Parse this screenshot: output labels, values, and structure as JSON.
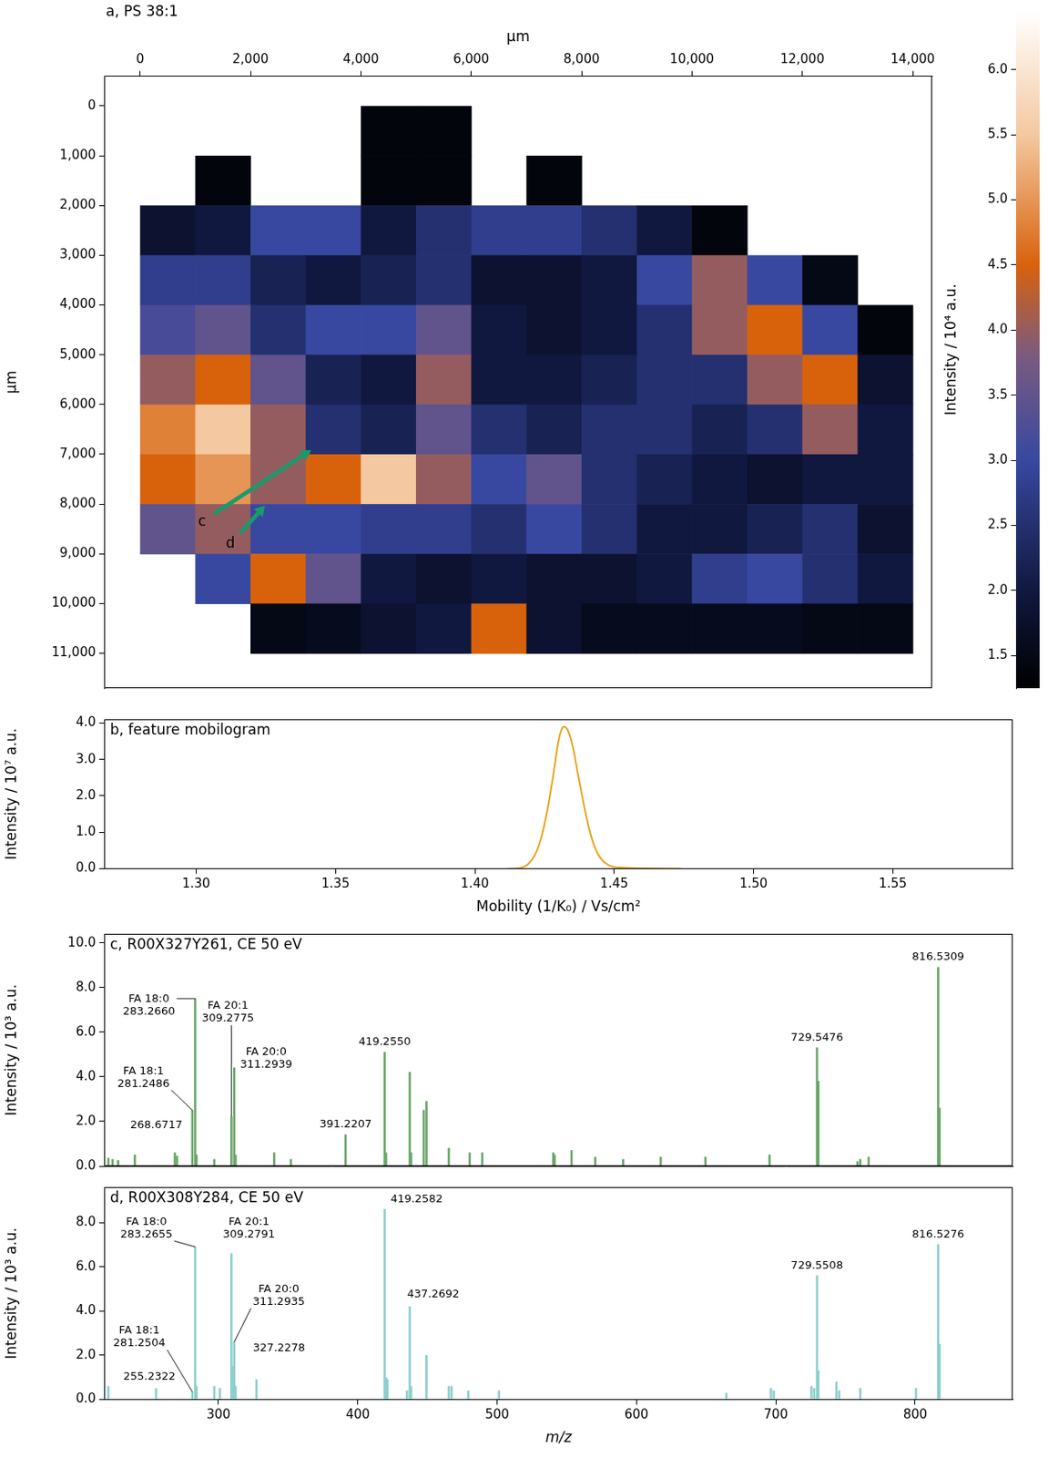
{
  "chart_data": [
    {
      "type": "heatmap",
      "title": "a, PS 38:1",
      "x_label": "µm",
      "y_label": "µm",
      "xlim": [
        -650,
        14350
      ],
      "ylim": [
        -600,
        11700
      ],
      "xticks": [
        0,
        {
          "value": 2000,
          "label": "2,000"
        },
        {
          "value": 4000,
          "label": "4,000"
        },
        {
          "value": 6000,
          "label": "6,000"
        },
        {
          "value": 8000,
          "label": "8,000"
        },
        {
          "value": 10000,
          "label": "10,000"
        },
        {
          "value": 12000,
          "label": "12,000"
        },
        {
          "value": 14000,
          "label": "14,000"
        }
      ],
      "yticks": [
        0,
        {
          "value": 1000,
          "label": "1,000"
        },
        {
          "value": 2000,
          "label": "2,000"
        },
        {
          "value": 3000,
          "label": "3,000"
        },
        {
          "value": 4000,
          "label": "4,000"
        },
        {
          "value": 5000,
          "label": "5,000"
        },
        {
          "value": 6000,
          "label": "6,000"
        },
        {
          "value": 7000,
          "label": "7,000"
        },
        {
          "value": 8000,
          "label": "8,000"
        },
        {
          "value": 9000,
          "label": "9,000"
        },
        {
          "value": 10000,
          "label": "10,000"
        },
        {
          "value": 11000,
          "label": "11,000"
        }
      ],
      "x": [
        500,
        1500,
        2500,
        3500,
        4500,
        5500,
        6500,
        7500,
        8500,
        9500,
        10500,
        11500,
        12500,
        13500
      ],
      "y": [
        500,
        1500,
        2500,
        3500,
        4500,
        5500,
        6500,
        7500,
        8500,
        9500,
        10500
      ],
      "cells": [
        [
          null,
          null,
          null,
          null,
          1.4,
          1.4,
          null,
          null,
          null,
          null,
          null,
          null,
          null,
          null
        ],
        [
          null,
          1.4,
          null,
          null,
          1.4,
          1.4,
          null,
          1.4,
          null,
          null,
          null,
          null,
          null,
          null
        ],
        [
          1.8,
          2.0,
          3.0,
          3.0,
          2.0,
          2.5,
          2.8,
          2.8,
          2.5,
          2.0,
          1.4,
          null,
          null,
          null
        ],
        [
          2.8,
          2.8,
          2.2,
          2.0,
          2.2,
          2.5,
          1.8,
          1.8,
          2.0,
          3.0,
          4.0,
          3.0,
          1.5,
          null
        ],
        [
          3.2,
          3.5,
          2.5,
          3.0,
          3.0,
          3.5,
          2.0,
          1.8,
          2.0,
          2.5,
          4.0,
          4.5,
          3.0,
          1.4
        ],
        [
          4.0,
          4.5,
          3.5,
          2.2,
          2.0,
          4.0,
          2.0,
          2.0,
          2.2,
          2.5,
          2.5,
          4.0,
          4.5,
          1.8
        ],
        [
          4.8,
          5.5,
          4.0,
          2.5,
          2.2,
          3.5,
          2.5,
          2.2,
          2.5,
          2.5,
          2.2,
          2.5,
          4.0,
          2.0
        ],
        [
          4.5,
          5.0,
          4.0,
          4.5,
          5.5,
          4.0,
          3.0,
          3.5,
          2.5,
          2.2,
          2.0,
          1.8,
          2.0,
          2.0
        ],
        [
          3.5,
          4.0,
          3.0,
          3.0,
          2.8,
          2.8,
          2.5,
          3.0,
          2.5,
          2.0,
          2.0,
          2.2,
          2.5,
          1.8
        ],
        [
          null,
          3.0,
          4.5,
          3.5,
          2.0,
          1.8,
          2.0,
          1.8,
          1.8,
          2.0,
          2.8,
          3.0,
          2.5,
          2.0
        ],
        [
          null,
          null,
          1.5,
          1.6,
          1.8,
          2.0,
          4.5,
          1.8,
          1.6,
          1.6,
          1.6,
          1.6,
          1.5,
          1.5
        ]
      ],
      "colorbar": {
        "title": "Intensity / 10⁴ a.u.",
        "range": [
          1.25,
          6.45
        ],
        "ticks": [
          1.5,
          {
            "value": 2,
            "label": "2.0"
          },
          2.5,
          {
            "value": 3,
            "label": "3.0"
          },
          3.5,
          {
            "value": 4,
            "label": "4.0"
          },
          4.5,
          {
            "value": 5,
            "label": "5.0"
          },
          5.5,
          {
            "value": 6,
            "label": "6.0"
          }
        ]
      },
      "annotations": [
        {
          "text": "c",
          "from": [
            1341,
            8197
          ],
          "to": [
            3102,
            6914
          ]
        },
        {
          "text": "d",
          "from": [
            1811,
            8587
          ],
          "to": [
            2264,
            8030
          ]
        }
      ]
    },
    {
      "type": "line",
      "title": "b, feature mobilogram",
      "x_label": "Mobility (1/K₀) / Vs/cm²",
      "y_label": "Intensity / 10⁷ a.u.",
      "color": "#e8a21c",
      "x": [
        1.412,
        1.416,
        1.419,
        1.422,
        1.424,
        1.426,
        1.428,
        1.43,
        1.431,
        1.432,
        1.433,
        1.435,
        1.437,
        1.439,
        1.441,
        1.443,
        1.445,
        1.448,
        1.453,
        1.463,
        1.474
      ],
      "values": [
        0,
        0.02,
        0.12,
        0.45,
        0.9,
        1.6,
        2.5,
        3.5,
        3.8,
        3.9,
        3.85,
        3.4,
        2.6,
        1.8,
        1.1,
        0.6,
        0.3,
        0.1,
        0.03,
        0.01,
        0
      ],
      "xlim": [
        1.267,
        1.593
      ],
      "xticks": [
        {
          "value": 1.3,
          "label": "1.30"
        },
        1.35,
        {
          "value": 1.4,
          "label": "1.40"
        },
        1.45,
        {
          "value": 1.5,
          "label": "1.50"
        },
        1.55
      ],
      "ylim": [
        0,
        4.1
      ],
      "yticks": [
        {
          "value": 0,
          "label": "0.0"
        },
        {
          "value": 1,
          "label": "1.0"
        },
        {
          "value": 2,
          "label": "2.0"
        },
        {
          "value": 3,
          "label": "3.0"
        },
        {
          "value": 4,
          "label": "4.0"
        }
      ]
    },
    {
      "type": "bar",
      "title": "c, R00X327Y261, CE 50 eV",
      "y_label": "Intensity / 10³ a.u.",
      "color": "#6aa66a",
      "tick_labels": "y",
      "x": [
        221,
        224,
        228,
        240,
        268.6717,
        270.2,
        281.2486,
        283.266,
        284.27,
        297,
        309.2775,
        311.2939,
        312.3,
        340,
        352,
        391.2207,
        419.255,
        420.26,
        437.27,
        438.27,
        447.3,
        449.3,
        465.3,
        480.3,
        489.3,
        540.3,
        541.3,
        553.4,
        570.4,
        590.4,
        617.4,
        649.5,
        695.5,
        729.5476,
        730.55,
        758.6,
        760.6,
        766.6,
        816.5309,
        817.53
      ],
      "values": [
        0.35,
        0.3,
        0.25,
        0.5,
        0.6,
        0.45,
        2.5,
        7.5,
        0.5,
        0.3,
        2.2,
        4.4,
        0.5,
        0.6,
        0.3,
        1.4,
        5.1,
        0.6,
        4.2,
        0.6,
        2.5,
        2.9,
        0.8,
        0.6,
        0.6,
        0.6,
        0.5,
        0.7,
        0.4,
        0.3,
        0.4,
        0.4,
        0.5,
        5.3,
        3.8,
        0.2,
        0.3,
        0.4,
        8.9,
        2.6
      ],
      "xlim": [
        218,
        870
      ],
      "xticks": [
        300,
        400,
        500,
        600,
        700,
        800
      ],
      "ylim": [
        0,
        10.4
      ],
      "yticks": [
        {
          "value": 0,
          "label": "0.0"
        },
        {
          "value": 2,
          "label": "2.0"
        },
        {
          "value": 4,
          "label": "4.0"
        },
        {
          "value": 6,
          "label": "6.0"
        },
        {
          "value": 8,
          "label": "8.0"
        },
        {
          "value": 10,
          "label": "10.0"
        }
      ],
      "annotations": [
        {
          "x": 281.2486,
          "lines": [
            "FA 18:1",
            "281.2486"
          ]
        },
        {
          "x": 283.266,
          "lines": [
            "FA 18:0",
            "283.2660"
          ]
        },
        {
          "x": 309.2775,
          "lines": [
            "FA 20:1",
            "309.2775"
          ]
        },
        {
          "x": 311.2939,
          "lines": [
            "FA 20:0",
            "311.2939"
          ]
        },
        {
          "x": 268.6717,
          "lines": [
            "268.6717"
          ]
        },
        {
          "x": 391.2207,
          "lines": [
            "391.2207"
          ]
        },
        {
          "x": 419.255,
          "lines": [
            "419.2550"
          ]
        },
        {
          "x": 729.5476,
          "lines": [
            "729.5476"
          ]
        },
        {
          "x": 816.5309,
          "lines": [
            "816.5309"
          ]
        }
      ]
    },
    {
      "type": "bar",
      "title": "d, R00X308Y284, CE 50 eV",
      "x_label": "m/z",
      "y_label": "Intensity / 10³ a.u.",
      "color": "#8ccfcc",
      "x": [
        221,
        255.2322,
        281.2504,
        283.2655,
        284.27,
        297,
        301,
        309.2791,
        310.3,
        311.2935,
        312.3,
        327.2278,
        419.2582,
        420.26,
        421.26,
        435.3,
        437.2692,
        438.27,
        449.3,
        465.3,
        467.3,
        479.3,
        501.3,
        664.5,
        696.5,
        698.5,
        725.5,
        727.5,
        729.5508,
        730.55,
        743.5,
        745.5,
        760.6,
        800.6,
        816.5276,
        817.53
      ],
      "values": [
        0.6,
        0.5,
        0.35,
        6.9,
        0.6,
        0.6,
        0.5,
        6.6,
        1.5,
        2.6,
        0.6,
        0.9,
        8.6,
        1.0,
        0.9,
        0.4,
        4.2,
        0.6,
        2.0,
        0.6,
        0.6,
        0.4,
        0.4,
        0.3,
        0.5,
        0.4,
        0.6,
        0.5,
        5.6,
        1.3,
        0.8,
        0.4,
        0.5,
        0.5,
        7.0,
        2.5
      ],
      "xlim": [
        218,
        870
      ],
      "xticks": [
        300,
        400,
        500,
        600,
        700,
        800
      ],
      "ylim": [
        0,
        9.6
      ],
      "yticks": [
        {
          "value": 0,
          "label": "0.0"
        },
        {
          "value": 2,
          "label": "2.0"
        },
        {
          "value": 4,
          "label": "4.0"
        },
        {
          "value": 6,
          "label": "6.0"
        },
        {
          "value": 8,
          "label": "8.0"
        }
      ],
      "annotations": [
        {
          "x": 255.2322,
          "lines": [
            "255.2322"
          ]
        },
        {
          "x": 281.2504,
          "lines": [
            "FA 18:1",
            "281.2504"
          ]
        },
        {
          "x": 283.2655,
          "lines": [
            "FA 18:0",
            "283.2655"
          ]
        },
        {
          "x": 309.2791,
          "lines": [
            "FA 20:1",
            "309.2791"
          ]
        },
        {
          "x": 311.2935,
          "lines": [
            "FA 20:0",
            "311.2935"
          ]
        },
        {
          "x": 327.2278,
          "lines": [
            "327.2278"
          ]
        },
        {
          "x": 419.2582,
          "lines": [
            "419.2582"
          ]
        },
        {
          "x": 437.2692,
          "lines": [
            "437.2692"
          ]
        },
        {
          "x": 729.5508,
          "lines": [
            "729.5508"
          ]
        },
        {
          "x": 816.5276,
          "lines": [
            "816.5276"
          ]
        }
      ]
    }
  ]
}
